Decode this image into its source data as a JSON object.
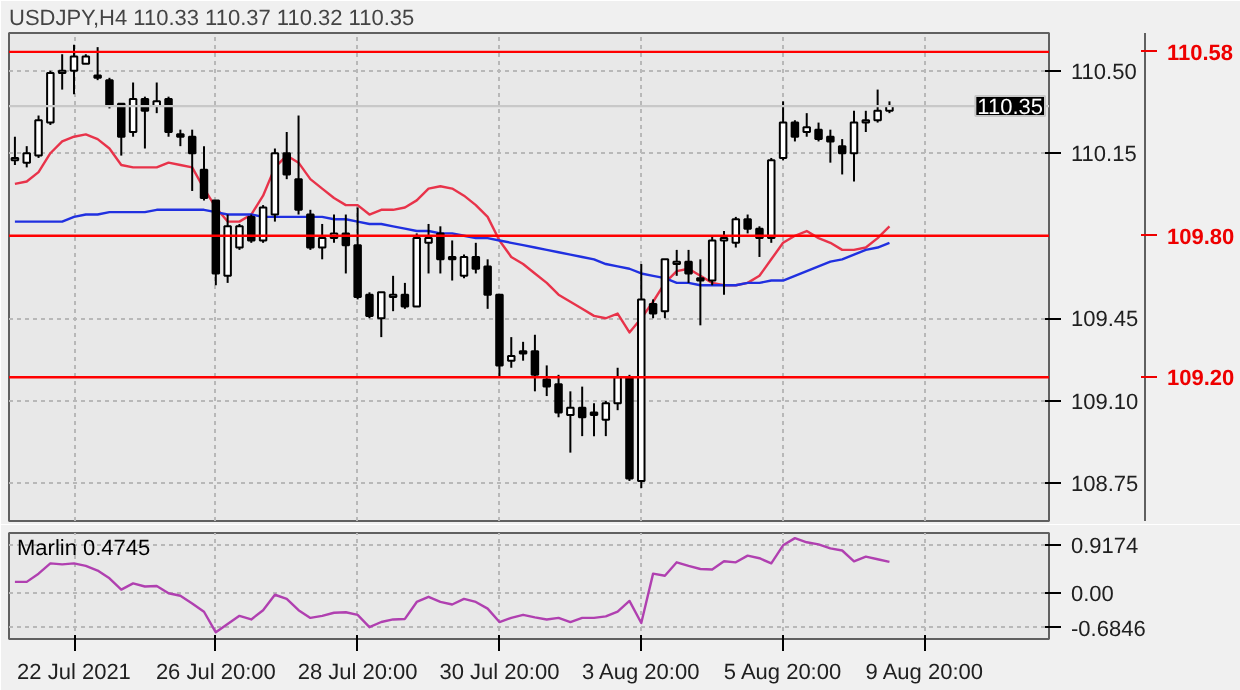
{
  "chart_data": [
    {
      "type": "candlestick",
      "title": "USDJPY,H4  110.33 110.37 110.32 110.35",
      "categories": [
        null,
        null,
        null,
        null,
        null,
        null,
        null,
        null,
        null,
        null,
        null,
        null,
        null,
        null,
        null,
        null,
        null,
        null,
        null,
        null,
        null,
        null,
        null,
        null,
        null,
        null,
        null,
        null,
        null,
        null,
        null,
        null,
        null,
        null,
        null,
        null,
        null,
        null,
        null,
        null,
        null,
        null,
        null,
        null,
        null,
        null,
        null,
        null,
        null,
        null,
        null,
        null,
        null,
        null,
        null,
        null,
        null,
        null,
        null,
        null,
        null,
        null,
        null,
        null,
        null,
        null,
        null,
        null,
        null,
        null,
        null,
        null,
        null,
        null,
        null,
        null,
        null,
        null,
        null,
        null,
        null,
        null,
        null,
        null,
        null,
        null,
        null,
        null
      ],
      "ohlc": [
        [
          110.12,
          110.22,
          110.1,
          110.13
        ],
        [
          110.11,
          110.18,
          110.09,
          110.15
        ],
        [
          110.14,
          110.31,
          110.13,
          110.29
        ],
        [
          110.28,
          110.5,
          110.27,
          110.49
        ],
        [
          110.49,
          110.57,
          110.42,
          110.5
        ],
        [
          110.5,
          110.61,
          110.4,
          110.56
        ],
        [
          110.53,
          110.57,
          110.53,
          110.56
        ],
        [
          110.48,
          110.6,
          110.46,
          110.47
        ],
        [
          110.46,
          110.47,
          110.34,
          110.35
        ],
        [
          110.36,
          110.36,
          110.14,
          110.22
        ],
        [
          110.24,
          110.45,
          110.22,
          110.38
        ],
        [
          110.38,
          110.39,
          110.17,
          110.33
        ],
        [
          110.35,
          110.45,
          110.32,
          110.37
        ],
        [
          110.38,
          110.39,
          110.22,
          110.24
        ],
        [
          110.23,
          110.25,
          110.18,
          110.22
        ],
        [
          110.22,
          110.25,
          109.99,
          110.15
        ],
        [
          110.08,
          110.18,
          109.95,
          109.96
        ],
        [
          109.95,
          109.95,
          109.59,
          109.64
        ],
        [
          109.63,
          109.89,
          109.6,
          109.84
        ],
        [
          109.75,
          109.85,
          109.74,
          109.84
        ],
        [
          109.88,
          109.89,
          109.77,
          109.78
        ],
        [
          109.78,
          109.93,
          109.77,
          109.92
        ],
        [
          109.89,
          110.17,
          109.86,
          110.15
        ],
        [
          110.15,
          110.24,
          110.04,
          110.06
        ],
        [
          110.04,
          110.31,
          109.89,
          109.91
        ],
        [
          109.89,
          109.91,
          109.74,
          109.75
        ],
        [
          109.75,
          109.85,
          109.7,
          109.79
        ],
        [
          109.79,
          109.89,
          109.77,
          109.81
        ],
        [
          109.81,
          109.89,
          109.64,
          109.76
        ],
        [
          109.76,
          109.92,
          109.53,
          109.54
        ],
        [
          109.55,
          109.56,
          109.45,
          109.46
        ],
        [
          109.45,
          109.56,
          109.37,
          109.56
        ],
        [
          109.54,
          109.63,
          109.48,
          109.55
        ],
        [
          109.55,
          109.6,
          109.49,
          109.5
        ],
        [
          109.5,
          109.81,
          109.5,
          109.79
        ],
        [
          109.77,
          109.85,
          109.64,
          109.79
        ],
        [
          109.81,
          109.84,
          109.64,
          109.7
        ],
        [
          109.71,
          109.78,
          109.61,
          109.7
        ],
        [
          109.63,
          109.72,
          109.62,
          109.71
        ],
        [
          109.71,
          109.77,
          109.64,
          109.66
        ],
        [
          109.67,
          109.7,
          109.49,
          109.55
        ],
        [
          109.55,
          109.55,
          109.2,
          109.25
        ],
        [
          109.27,
          109.37,
          109.24,
          109.29
        ],
        [
          109.31,
          109.35,
          109.27,
          109.3
        ],
        [
          109.31,
          109.38,
          109.14,
          109.21
        ],
        [
          109.19,
          109.25,
          109.12,
          109.16
        ],
        [
          109.17,
          109.21,
          109.03,
          109.05
        ],
        [
          109.04,
          109.14,
          108.88,
          109.07
        ],
        [
          109.07,
          109.16,
          108.95,
          109.03
        ],
        [
          109.05,
          109.09,
          108.95,
          109.04
        ],
        [
          109.02,
          109.1,
          108.95,
          109.09
        ],
        [
          109.09,
          109.24,
          109.06,
          109.2
        ],
        [
          109.2,
          109.21,
          108.76,
          108.77
        ],
        [
          108.76,
          109.68,
          108.73,
          109.53
        ],
        [
          109.51,
          109.53,
          109.45,
          109.47
        ],
        [
          109.48,
          109.7,
          109.45,
          109.7
        ],
        [
          109.68,
          109.74,
          109.63,
          109.69
        ],
        [
          109.69,
          109.74,
          109.6,
          109.64
        ],
        [
          109.62,
          109.7,
          109.42,
          109.61
        ],
        [
          109.61,
          109.8,
          109.59,
          109.78
        ],
        [
          109.78,
          109.82,
          109.55,
          109.79
        ],
        [
          109.77,
          109.88,
          109.75,
          109.87
        ],
        [
          109.87,
          109.89,
          109.81,
          109.83
        ],
        [
          109.83,
          109.84,
          109.71,
          109.79
        ],
        [
          109.79,
          110.13,
          109.77,
          110.12
        ],
        [
          110.13,
          110.37,
          110.12,
          110.28
        ],
        [
          110.28,
          110.29,
          110.2,
          110.22
        ],
        [
          110.24,
          110.32,
          110.22,
          110.26
        ],
        [
          110.25,
          110.28,
          110.2,
          110.21
        ],
        [
          110.22,
          110.25,
          110.11,
          110.2
        ],
        [
          110.18,
          110.21,
          110.06,
          110.15
        ],
        [
          110.15,
          110.33,
          110.03,
          110.28
        ],
        [
          110.28,
          110.33,
          110.24,
          110.29
        ],
        [
          110.29,
          110.42,
          110.28,
          110.33
        ],
        [
          110.33,
          110.37,
          110.32,
          110.35
        ],
        null,
        null,
        null,
        null,
        null,
        null,
        null,
        null,
        null,
        null,
        null,
        null,
        null
      ],
      "series": [
        {
          "type": "line",
          "color": "#e8334a",
          "values": [
            110.02,
            110.03,
            110.07,
            110.15,
            110.2,
            110.22,
            110.23,
            110.21,
            110.17,
            110.1,
            110.09,
            110.09,
            110.09,
            110.11,
            110.1,
            110.09,
            110.0,
            109.92,
            109.86,
            109.86,
            109.89,
            109.97,
            110.09,
            110.14,
            110.11,
            110.04,
            110.0,
            109.96,
            109.93,
            109.93,
            109.89,
            109.91,
            109.91,
            109.92,
            109.95,
            110.0,
            110.01,
            110.0,
            109.97,
            109.93,
            109.88,
            109.78,
            109.71,
            109.68,
            109.64,
            109.6,
            109.55,
            109.52,
            109.49,
            109.46,
            109.45,
            109.47,
            109.39,
            109.45,
            109.52,
            109.6,
            109.65,
            109.66,
            109.63,
            109.6,
            109.59,
            109.59,
            109.6,
            109.63,
            109.7,
            109.77,
            109.8,
            109.82,
            109.79,
            109.77,
            109.74,
            109.74,
            109.75,
            109.79,
            109.84,
            null,
            null,
            null,
            null,
            null,
            null,
            null,
            null,
            null,
            null,
            null,
            null,
            null
          ]
        },
        {
          "type": "line",
          "color": "#2030e0",
          "values": [
            109.86,
            109.86,
            109.86,
            109.86,
            109.86,
            109.88,
            109.89,
            109.89,
            109.9,
            109.9,
            109.9,
            109.9,
            109.91,
            109.91,
            109.91,
            109.91,
            109.91,
            109.9,
            109.89,
            109.89,
            109.89,
            109.88,
            109.88,
            109.88,
            109.88,
            109.88,
            109.88,
            109.87,
            109.87,
            109.86,
            109.85,
            109.85,
            109.84,
            109.83,
            109.82,
            109.82,
            109.81,
            109.81,
            109.8,
            109.79,
            109.79,
            109.78,
            109.77,
            109.76,
            109.75,
            109.74,
            109.73,
            109.72,
            109.71,
            109.7,
            109.68,
            109.67,
            109.66,
            109.64,
            109.63,
            109.62,
            109.6,
            109.6,
            109.59,
            109.59,
            109.59,
            109.59,
            109.6,
            109.6,
            109.61,
            109.61,
            109.63,
            109.65,
            109.67,
            109.69,
            109.7,
            109.72,
            109.74,
            109.75,
            109.77,
            null,
            null,
            null,
            null,
            null,
            null,
            null,
            null,
            null,
            null,
            null,
            null,
            null
          ]
        }
      ],
      "ylim": [
        108.59,
        110.66
      ],
      "yticks": [
        {
          "value": 110.5,
          "label": "110.50"
        },
        110.15,
        109.45,
        {
          "value": 109.1,
          "label": "109.10"
        },
        108.75
      ],
      "grid": true,
      "ref_lines": [
        {
          "axis": "y",
          "value": 110.58,
          "label": "110.58",
          "color": "#ff0000"
        },
        {
          "axis": "y",
          "value": 110.35,
          "label": "110.35",
          "color": "#c8c8c8"
        },
        {
          "axis": "y",
          "value": 109.8,
          "label": "109.80",
          "color": "#ff0000"
        },
        {
          "axis": "y",
          "value": 109.2,
          "label": "109.20",
          "color": "#ff0000"
        }
      ]
    },
    {
      "type": "line",
      "title": "Marlin 0.4745",
      "categories": [
        null,
        null,
        null,
        null,
        null,
        "22 Jul 2021",
        null,
        null,
        null,
        null,
        null,
        null,
        null,
        null,
        null,
        null,
        null,
        "26 Jul 20:00",
        null,
        null,
        null,
        null,
        null,
        null,
        null,
        null,
        null,
        null,
        null,
        "28 Jul 20:00",
        null,
        null,
        null,
        null,
        null,
        null,
        null,
        null,
        null,
        null,
        null,
        "30 Jul 20:00",
        null,
        null,
        null,
        null,
        null,
        null,
        null,
        null,
        null,
        null,
        null,
        "3 Aug 20:00",
        null,
        null,
        null,
        null,
        null,
        null,
        null,
        null,
        null,
        null,
        null,
        "5 Aug 20:00",
        null,
        null,
        null,
        null,
        null,
        null,
        null,
        null,
        null,
        null,
        null,
        "9 Aug 20:00",
        null,
        null,
        null,
        null,
        null,
        null,
        null,
        null,
        null,
        null
      ],
      "series": [
        {
          "color": "#b040b0",
          "values": [
            0.21,
            0.21,
            0.37,
            0.57,
            0.55,
            0.57,
            0.52,
            0.43,
            0.28,
            0.06,
            0.18,
            0.12,
            0.13,
            -0.01,
            -0.06,
            -0.21,
            -0.37,
            -0.77,
            -0.61,
            -0.45,
            -0.52,
            -0.34,
            -0.04,
            -0.12,
            -0.34,
            -0.49,
            -0.45,
            -0.39,
            -0.38,
            -0.43,
            -0.67,
            -0.57,
            -0.52,
            -0.51,
            -0.18,
            -0.08,
            -0.18,
            -0.23,
            -0.12,
            -0.18,
            -0.31,
            -0.57,
            -0.49,
            -0.43,
            -0.48,
            -0.52,
            -0.49,
            -0.57,
            -0.49,
            -0.49,
            -0.46,
            -0.37,
            -0.16,
            -0.59,
            0.37,
            0.33,
            0.59,
            0.52,
            0.46,
            0.45,
            0.61,
            0.59,
            0.72,
            0.67,
            0.57,
            0.92,
            1.06,
            0.98,
            0.94,
            0.86,
            0.82,
            0.61,
            0.7,
            0.65,
            0.6,
            null,
            null,
            null,
            null,
            null,
            null,
            null,
            null,
            null,
            null,
            null,
            null,
            null
          ]
        }
      ],
      "ylim": [
        -0.9,
        1.16
      ],
      "yticks": [
        0.9174,
        {
          "value": 0,
          "label": "0.00"
        },
        -0.6846
      ],
      "grid": true
    }
  ]
}
